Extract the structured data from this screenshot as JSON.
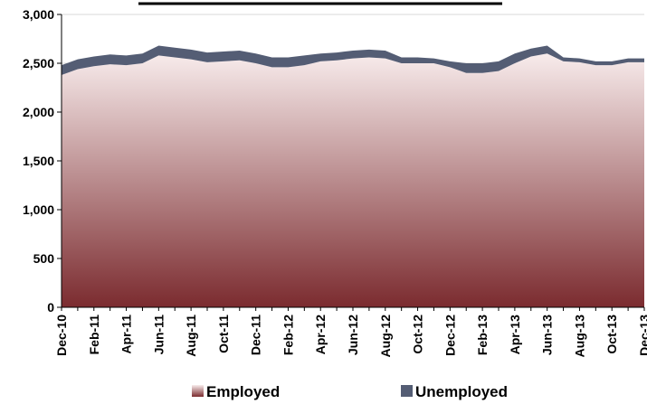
{
  "chart_data": {
    "type": "area",
    "stacked": true,
    "categories": [
      "Dec-10",
      "Jan-11",
      "Feb-11",
      "Mar-11",
      "Apr-11",
      "May-11",
      "Jun-11",
      "Jul-11",
      "Aug-11",
      "Sep-11",
      "Oct-11",
      "Nov-11",
      "Dec-11",
      "Jan-12",
      "Feb-12",
      "Mar-12",
      "Apr-12",
      "May-12",
      "Jun-12",
      "Jul-12",
      "Aug-12",
      "Sep-12",
      "Oct-12",
      "Nov-12",
      "Dec-12",
      "Jan-13",
      "Feb-13",
      "Mar-13",
      "Apr-13",
      "May-13",
      "Jun-13",
      "Jul-13",
      "Aug-13",
      "Sep-13",
      "Oct-13",
      "Nov-13",
      "Dec-13"
    ],
    "x_tick_labels": [
      "Dec-10",
      "Feb-11",
      "Apr-11",
      "Jun-11",
      "Aug-11",
      "Oct-11",
      "Dec-11",
      "Feb-12",
      "Apr-12",
      "Jun-12",
      "Aug-12",
      "Oct-12",
      "Dec-12",
      "Feb-13",
      "Apr-13",
      "Jun-13",
      "Aug-13",
      "Oct-13",
      "Dec-13"
    ],
    "series": [
      {
        "name": "Employed",
        "values": [
          2380,
          2440,
          2470,
          2490,
          2480,
          2500,
          2580,
          2560,
          2540,
          2510,
          2520,
          2530,
          2500,
          2460,
          2460,
          2480,
          2520,
          2530,
          2550,
          2560,
          2550,
          2500,
          2500,
          2500,
          2460,
          2400,
          2400,
          2420,
          2500,
          2570,
          2600,
          2520,
          2510,
          2480,
          2480,
          2510,
          2510
        ]
      },
      {
        "name": "Unemployed",
        "values": [
          100,
          100,
          100,
          100,
          100,
          100,
          100,
          100,
          100,
          100,
          100,
          100,
          100,
          100,
          100,
          100,
          80,
          80,
          80,
          80,
          80,
          60,
          60,
          50,
          60,
          100,
          100,
          100,
          100,
          80,
          80,
          40,
          40,
          40,
          40,
          40,
          40
        ]
      }
    ],
    "yticks": [
      0,
      500,
      1000,
      1500,
      2000,
      2500,
      3000
    ],
    "ylim": [
      0,
      3000
    ],
    "grid": "horizontal",
    "legend_position": "bottom",
    "colors": {
      "employed_top": "#f8ecec",
      "employed_bottom": "#7b2b2f",
      "unemployed": "#545d74",
      "grid": "#d9d9d9"
    }
  }
}
